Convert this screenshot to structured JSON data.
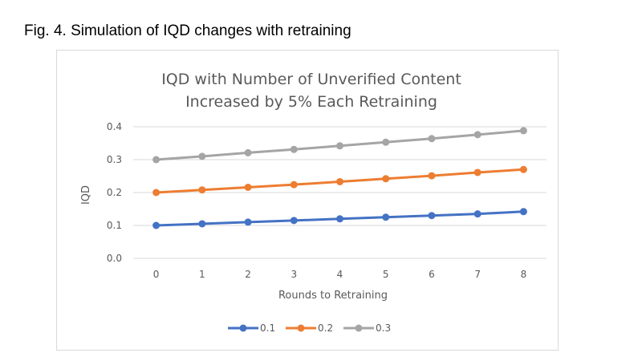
{
  "caption": "Fig. 4. Simulation of IQD changes with retraining",
  "chart_data": {
    "type": "line",
    "title_lines": [
      "IQD with Number of Unverified Content",
      "Increased by 5% Each Retraining"
    ],
    "xlabel": "Rounds to Retraining",
    "ylabel": "IQD",
    "x": [
      0,
      1,
      2,
      3,
      4,
      5,
      6,
      7,
      8
    ],
    "x_tick_labels": [
      "0",
      "1",
      "2",
      "3",
      "4",
      "5",
      "6",
      "7",
      "8"
    ],
    "y_tick_labels": [
      "0.0",
      "0.1",
      "0.2",
      "0.3",
      "0.4"
    ],
    "ylim": [
      0,
      0.4
    ],
    "grid": true,
    "legend_position": "bottom",
    "series": [
      {
        "name": "0.1",
        "color": "#4472C4",
        "values": [
          0.1,
          0.105,
          0.11,
          0.115,
          0.12,
          0.125,
          0.13,
          0.135,
          0.142
        ]
      },
      {
        "name": "0.2",
        "color": "#ED7D31",
        "values": [
          0.2,
          0.208,
          0.216,
          0.224,
          0.233,
          0.242,
          0.251,
          0.261,
          0.27
        ]
      },
      {
        "name": "0.3",
        "color": "#A5A5A5",
        "values": [
          0.3,
          0.31,
          0.321,
          0.331,
          0.342,
          0.353,
          0.364,
          0.376,
          0.388
        ]
      }
    ]
  }
}
